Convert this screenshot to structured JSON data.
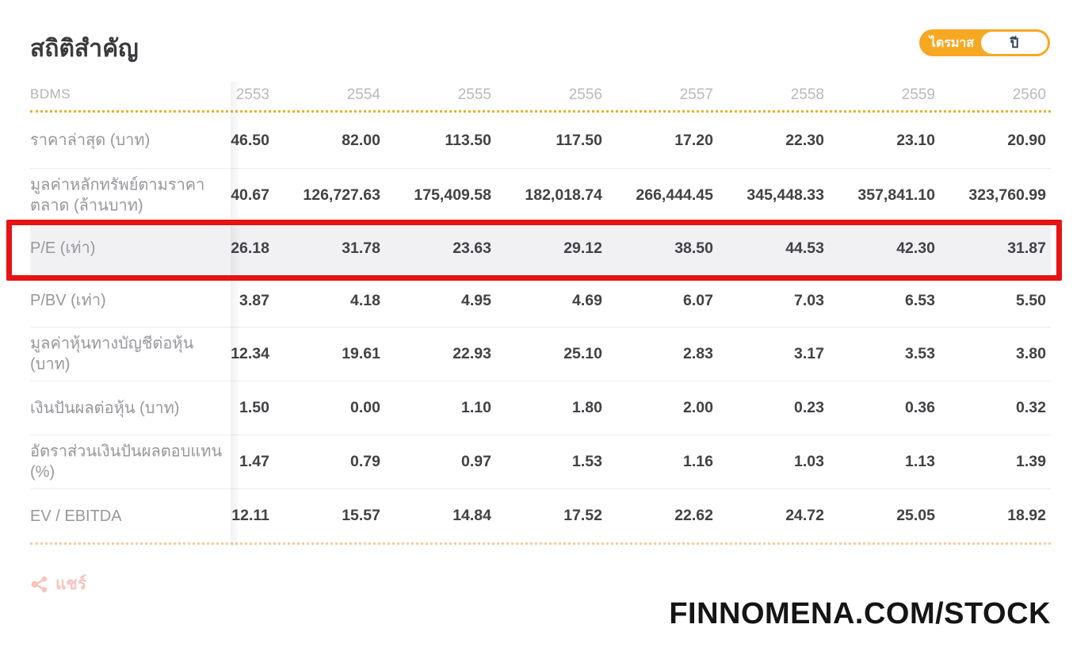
{
  "page": {
    "title": "สถิติสำคัญ",
    "watermark": "FINNOMENA.COM/STOCK"
  },
  "toggle": {
    "quarter_label": "ไตรมาส",
    "year_label": "ปี",
    "selected": "ปี"
  },
  "share": {
    "label": "แชร์"
  },
  "table": {
    "symbol": "BDMS",
    "years": [
      "2553",
      "2554",
      "2555",
      "2556",
      "2557",
      "2558",
      "2559",
      "2560"
    ],
    "rows": [
      {
        "label": "ราคาล่าสุด (บาท)",
        "highlight": false,
        "height": "h70",
        "values": [
          "46.50",
          "82.00",
          "113.50",
          "117.50",
          "17.20",
          "22.30",
          "23.10",
          "20.90"
        ]
      },
      {
        "label": "มูลค่าหลักทรัพย์ตามราคาตลาด (ล้านบาท)",
        "highlight": false,
        "height": "h68",
        "values": [
          "40.67",
          "126,727.63",
          "175,409.58",
          "182,018.74",
          "266,444.45",
          "345,448.33",
          "357,841.10",
          "323,760.99"
        ]
      },
      {
        "label": "P/E (เท่า)",
        "highlight": true,
        "height": "h66",
        "values": [
          "26.18",
          "31.78",
          "23.63",
          "29.12",
          "38.50",
          "44.53",
          "42.30",
          "31.87"
        ]
      },
      {
        "label": "P/BV (เท่า)",
        "highlight": false,
        "height": "h66",
        "values": [
          "3.87",
          "4.18",
          "4.95",
          "4.69",
          "6.07",
          "7.03",
          "6.53",
          "5.50"
        ]
      },
      {
        "label": "มูลค่าหุ้นทางบัญชีต่อหุ้น (บาท)",
        "highlight": false,
        "height": "h68",
        "values": [
          "12.34",
          "19.61",
          "22.93",
          "25.10",
          "2.83",
          "3.17",
          "3.53",
          "3.80"
        ]
      },
      {
        "label": "เงินปันผลต่อหุ้น (บาท)",
        "highlight": false,
        "height": "h68",
        "values": [
          "1.50",
          "0.00",
          "1.10",
          "1.80",
          "2.00",
          "0.23",
          "0.36",
          "0.32"
        ]
      },
      {
        "label": "อัตราส่วนเงินปันผลตอบแทน (%)",
        "highlight": false,
        "height": "h68",
        "values": [
          "1.47",
          "0.79",
          "0.97",
          "1.53",
          "1.16",
          "1.03",
          "1.13",
          "1.39"
        ]
      },
      {
        "label": "EV / EBITDA",
        "highlight": false,
        "height": "h68",
        "values": [
          "12.11",
          "15.57",
          "14.84",
          "17.52",
          "22.62",
          "24.72",
          "25.05",
          "18.92"
        ]
      }
    ]
  },
  "colors": {
    "accent_orange": "#F7A823",
    "annotation_red": "#E51313",
    "highlight_row_bg": "#F1F1F4",
    "header_dotted": "#E2B32D",
    "bottom_dotted": "#F5C9A2",
    "share_pink": "#F8C0BA",
    "label_gray": "#97979C",
    "value_dark": "#414146"
  }
}
